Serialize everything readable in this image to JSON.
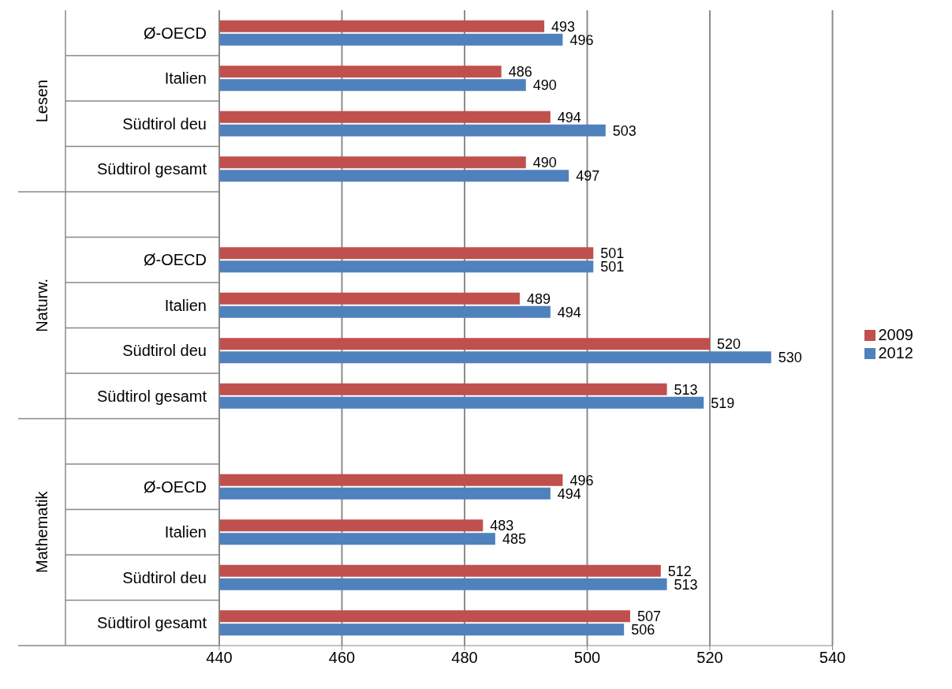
{
  "chart_data": {
    "type": "bar",
    "orientation": "horizontal",
    "categories": [
      "Ø-OECD",
      "Italien",
      "Südtirol deu",
      "Südtirol gesamt",
      null,
      "Ø-OECD",
      "Italien",
      "Südtirol deu",
      "Südtirol gesamt",
      null,
      "Ø-OECD",
      "Italien",
      "Südtirol deu",
      "Südtirol gesamt"
    ],
    "series": [
      {
        "name": "2009",
        "color": "#c0504d",
        "values": [
          493,
          486,
          494,
          490,
          null,
          501,
          489,
          520,
          513,
          null,
          496,
          483,
          512,
          507
        ]
      },
      {
        "name": "2012",
        "color": "#4f81bd",
        "values": [
          496,
          490,
          503,
          497,
          null,
          501,
          494,
          530,
          519,
          null,
          494,
          485,
          513,
          506
        ]
      }
    ],
    "annotations": [
      "Lesen",
      "Naturw.",
      "Mathematik"
    ],
    "xlim": [
      440,
      540
    ],
    "xticks": [
      440,
      460,
      480,
      500,
      520,
      540
    ],
    "grid": "x",
    "legend": "right",
    "data_labels": true
  }
}
